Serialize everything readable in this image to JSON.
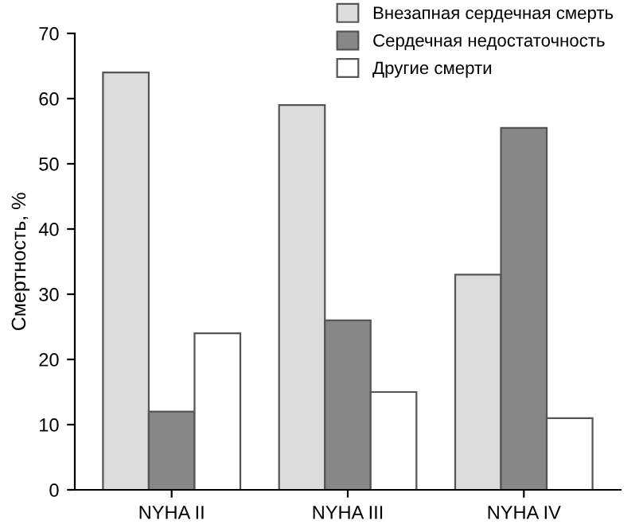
{
  "chart_data": {
    "type": "bar",
    "ylabel": "Смертность, %",
    "categories": [
      "NYHA II",
      "NYHA III",
      "NYHA IV"
    ],
    "series": [
      {
        "name": "Внезапная сердечная смерть",
        "color": "#dcdcdc",
        "values": [
          64,
          59,
          33
        ]
      },
      {
        "name": "Сердечная недостаточность",
        "color": "#878787",
        "values": [
          12,
          26,
          55.5
        ]
      },
      {
        "name": "Другие смерти",
        "color": "#ffffff",
        "values": [
          24,
          15,
          11
        ]
      }
    ],
    "ylim": [
      0,
      70
    ],
    "yticks": [
      0,
      10,
      20,
      30,
      40,
      50,
      60,
      70
    ],
    "grid": false,
    "legend": "top right"
  }
}
